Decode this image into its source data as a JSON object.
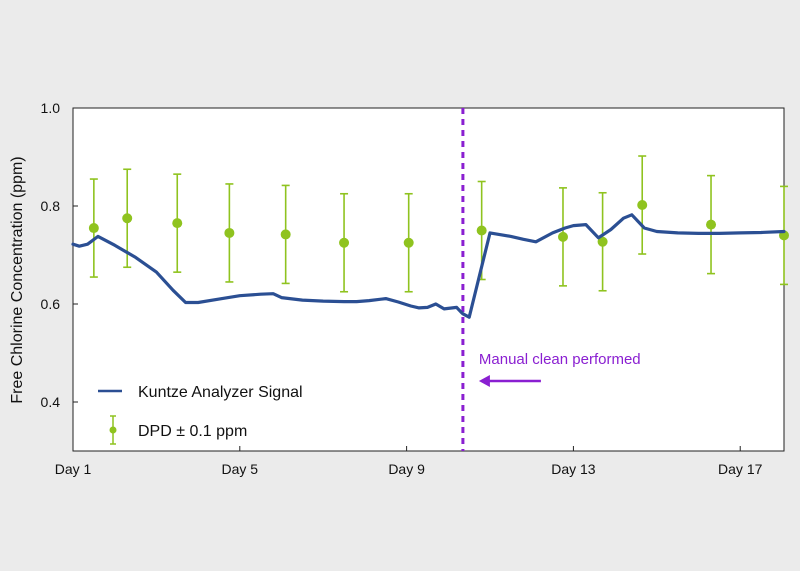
{
  "chart_data": {
    "type": "line",
    "title": "",
    "xlabel": "",
    "ylabel": "Free Chlorine Concentration (ppm)",
    "xlim": [
      1,
      18.05
    ],
    "ylim": [
      0.3,
      1.0
    ],
    "x_ticks": [
      {
        "value": 1,
        "label": "Day 1"
      },
      {
        "value": 5,
        "label": "Day 5"
      },
      {
        "value": 9,
        "label": "Day 9"
      },
      {
        "value": 13,
        "label": "Day 13"
      },
      {
        "value": 17,
        "label": "Day 17"
      }
    ],
    "y_ticks": [
      {
        "value": 0.4,
        "label": "0.4"
      },
      {
        "value": 0.6,
        "label": "0.6"
      },
      {
        "value": 0.8,
        "label": "0.8"
      },
      {
        "value": 1.0,
        "label": "1.0"
      }
    ],
    "grid": false,
    "legend_position": "bottom-left",
    "colors": {
      "line": "#2b4f93",
      "dpd": "#8fc31f",
      "annotation": "#8a1fd1",
      "background": "#ebebeb",
      "plot_background": "#ffffff"
    },
    "series": [
      {
        "name": "Kuntze Analyzer Signal",
        "kind": "line",
        "x": [
          1.0,
          1.15,
          1.35,
          1.6,
          2.0,
          2.5,
          3.0,
          3.4,
          3.7,
          4.0,
          4.5,
          5.0,
          5.5,
          5.8,
          6.0,
          6.5,
          7.0,
          7.5,
          7.8,
          8.1,
          8.5,
          8.8,
          9.1,
          9.3,
          9.5,
          9.7,
          9.9,
          10.2,
          10.3,
          10.35,
          10.5,
          11.0,
          11.5,
          11.8,
          12.1,
          12.5,
          12.8,
          13.0,
          13.3,
          13.6,
          13.9,
          14.2,
          14.4,
          14.7,
          15.0,
          15.5,
          16.0,
          16.5,
          17.0,
          17.5,
          18.05
        ],
        "y": [
          0.722,
          0.718,
          0.722,
          0.738,
          0.72,
          0.695,
          0.665,
          0.628,
          0.603,
          0.603,
          0.61,
          0.617,
          0.62,
          0.621,
          0.613,
          0.608,
          0.606,
          0.605,
          0.605,
          0.607,
          0.611,
          0.604,
          0.596,
          0.592,
          0.593,
          0.6,
          0.59,
          0.593,
          0.584,
          0.58,
          0.573,
          0.745,
          0.738,
          0.732,
          0.727,
          0.745,
          0.755,
          0.76,
          0.762,
          0.735,
          0.752,
          0.775,
          0.782,
          0.755,
          0.748,
          0.745,
          0.744,
          0.744,
          0.745,
          0.746,
          0.748
        ]
      },
      {
        "name": "DPD ± 0.1 ppm",
        "kind": "errorbar",
        "error": 0.1,
        "x": [
          1.5,
          2.3,
          3.5,
          4.75,
          6.1,
          7.5,
          9.05,
          10.8,
          12.75,
          13.7,
          14.65,
          16.3,
          18.05
        ],
        "y": [
          0.755,
          0.775,
          0.765,
          0.745,
          0.742,
          0.725,
          0.725,
          0.75,
          0.737,
          0.727,
          0.802,
          0.762,
          0.74
        ]
      }
    ],
    "annotations": [
      {
        "type": "vline",
        "x": 10.35,
        "label": "Manual clean performed",
        "arrow": "left"
      }
    ]
  }
}
